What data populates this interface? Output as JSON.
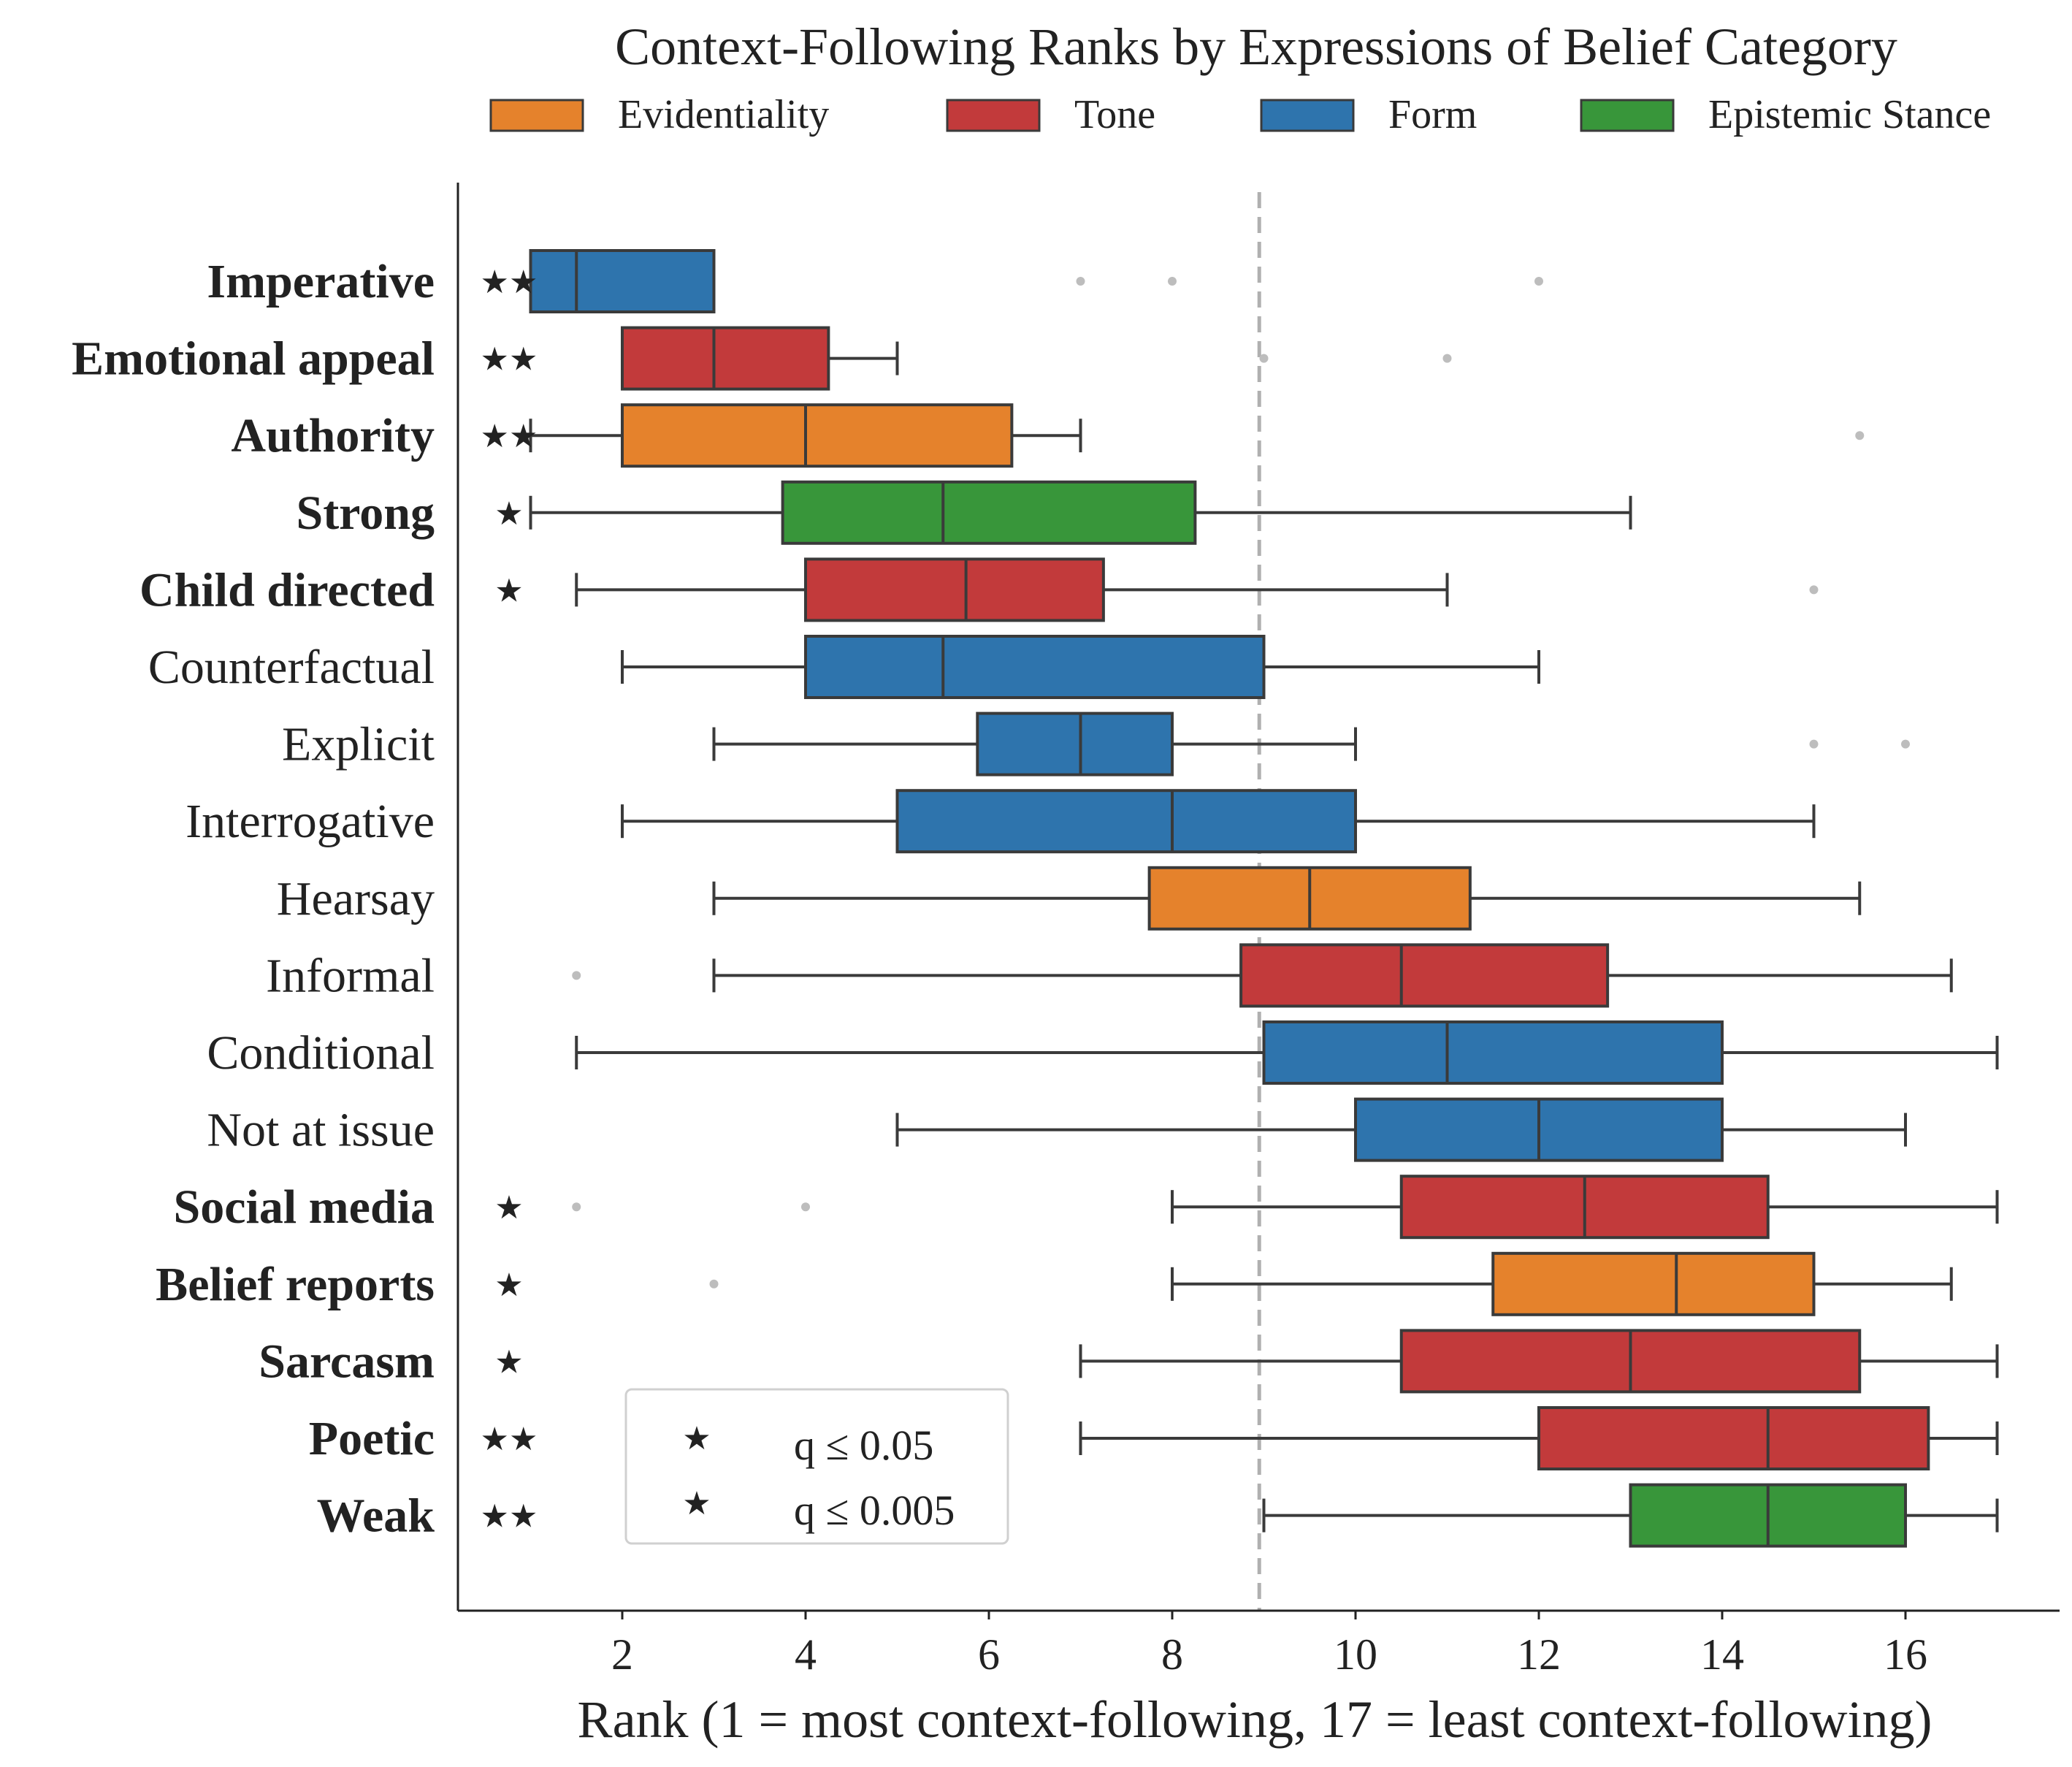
{
  "chart_data": {
    "type": "boxplot",
    "title": "Context-Following Ranks by Expressions of Belief Category",
    "xlabel": "Rank (1 = most context-following, 17 = least context-following)",
    "ylabel": "",
    "xlim": [
      0.2,
      17.8
    ],
    "xticks": [
      2,
      4,
      6,
      8,
      10,
      12,
      14,
      16
    ],
    "reference_line": 8.95,
    "categories_legend": [
      {
        "name": "Evidentiality",
        "color": "#e5822c"
      },
      {
        "name": "Tone",
        "color": "#c23a3b"
      },
      {
        "name": "Form",
        "color": "#2e74ad"
      },
      {
        "name": "Epistemic Stance",
        "color": "#38963a"
      }
    ],
    "significance_legend": [
      {
        "symbol": "★",
        "label": "q ≤ 0.05"
      },
      {
        "symbol": "★",
        "label": "q ≤ 0.005"
      }
    ],
    "rows": [
      {
        "label": "Imperative",
        "category": "Form",
        "bold": true,
        "stars": "★★",
        "whisker_low": 1,
        "q1": 1,
        "median": 1.5,
        "q3": 3,
        "whisker_high": 3,
        "outliers": [
          7,
          8,
          12
        ]
      },
      {
        "label": "Emotional appeal",
        "category": "Tone",
        "bold": true,
        "stars": "★★",
        "whisker_low": 2,
        "q1": 2,
        "median": 3,
        "q3": 4.25,
        "whisker_high": 5,
        "outliers": [
          9,
          11
        ]
      },
      {
        "label": "Authority",
        "category": "Evidentiality",
        "bold": true,
        "stars": "★★",
        "whisker_low": 1,
        "q1": 2,
        "median": 4,
        "q3": 6.25,
        "whisker_high": 7,
        "outliers": [
          15.5
        ]
      },
      {
        "label": "Strong",
        "category": "Epistemic Stance",
        "bold": true,
        "stars": "★",
        "whisker_low": 1,
        "q1": 3.75,
        "median": 5.5,
        "q3": 8.25,
        "whisker_high": 13,
        "outliers": []
      },
      {
        "label": "Child directed",
        "category": "Tone",
        "bold": true,
        "stars": "★",
        "whisker_low": 1.5,
        "q1": 4,
        "median": 5.75,
        "q3": 7.25,
        "whisker_high": 11,
        "outliers": [
          15
        ]
      },
      {
        "label": "Counterfactual",
        "category": "Form",
        "bold": false,
        "stars": "",
        "whisker_low": 2,
        "q1": 4,
        "median": 5.5,
        "q3": 9,
        "whisker_high": 12,
        "outliers": []
      },
      {
        "label": "Explicit",
        "category": "Form",
        "bold": false,
        "stars": "",
        "whisker_low": 3,
        "q1": 5.875,
        "median": 7,
        "q3": 8,
        "whisker_high": 10,
        "outliers": [
          15,
          16
        ]
      },
      {
        "label": "Interrogative",
        "category": "Form",
        "bold": false,
        "stars": "",
        "whisker_low": 2,
        "q1": 5,
        "median": 8,
        "q3": 10,
        "whisker_high": 15,
        "outliers": []
      },
      {
        "label": "Hearsay",
        "category": "Evidentiality",
        "bold": false,
        "stars": "",
        "whisker_low": 3,
        "q1": 7.75,
        "median": 9.5,
        "q3": 11.25,
        "whisker_high": 15.5,
        "outliers": []
      },
      {
        "label": "Informal",
        "category": "Tone",
        "bold": false,
        "stars": "",
        "whisker_low": 3,
        "q1": 8.75,
        "median": 10.5,
        "q3": 12.75,
        "whisker_high": 16.5,
        "outliers": [
          1.5
        ]
      },
      {
        "label": "Conditional",
        "category": "Form",
        "bold": false,
        "stars": "",
        "whisker_low": 1.5,
        "q1": 9,
        "median": 11,
        "q3": 14,
        "whisker_high": 17,
        "outliers": []
      },
      {
        "label": "Not at issue",
        "category": "Form",
        "bold": false,
        "stars": "",
        "whisker_low": 5,
        "q1": 10,
        "median": 12,
        "q3": 14,
        "whisker_high": 16,
        "outliers": []
      },
      {
        "label": "Social media",
        "category": "Tone",
        "bold": true,
        "stars": "★",
        "whisker_low": 8,
        "q1": 10.5,
        "median": 12.5,
        "q3": 14.5,
        "whisker_high": 17,
        "outliers": [
          1.5,
          4
        ]
      },
      {
        "label": "Belief reports",
        "category": "Evidentiality",
        "bold": true,
        "stars": "★",
        "whisker_low": 8,
        "q1": 11.5,
        "median": 13.5,
        "q3": 15,
        "whisker_high": 16.5,
        "outliers": [
          3
        ]
      },
      {
        "label": "Sarcasm",
        "category": "Tone",
        "bold": true,
        "stars": "★",
        "whisker_low": 7,
        "q1": 10.5,
        "median": 13,
        "q3": 15.5,
        "whisker_high": 17,
        "outliers": []
      },
      {
        "label": "Poetic",
        "category": "Tone",
        "bold": true,
        "stars": "★★",
        "whisker_low": 7,
        "q1": 12,
        "median": 14.5,
        "q3": 16.25,
        "whisker_high": 17,
        "outliers": []
      },
      {
        "label": "Weak",
        "category": "Epistemic Stance",
        "bold": true,
        "stars": "★★",
        "whisker_low": 9,
        "q1": 13,
        "median": 14.5,
        "q3": 16,
        "whisker_high": 17,
        "outliers": []
      }
    ]
  }
}
